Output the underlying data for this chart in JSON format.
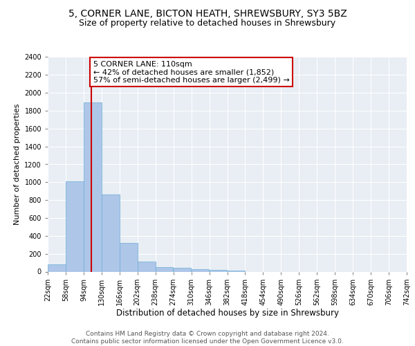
{
  "title1": "5, CORNER LANE, BICTON HEATH, SHREWSBURY, SY3 5BZ",
  "title2": "Size of property relative to detached houses in Shrewsbury",
  "xlabel": "Distribution of detached houses by size in Shrewsbury",
  "ylabel": "Number of detached properties",
  "bin_edges": [
    22,
    58,
    94,
    130,
    166,
    202,
    238,
    274,
    310,
    346,
    382,
    418,
    454,
    490,
    526,
    562,
    598,
    634,
    670,
    706,
    742
  ],
  "bar_heights": [
    85,
    1010,
    1890,
    860,
    320,
    115,
    50,
    40,
    30,
    18,
    10,
    0,
    0,
    0,
    0,
    0,
    0,
    0,
    0,
    0
  ],
  "bar_color": "#aec6e8",
  "bar_edge_color": "#6aaed6",
  "property_size": 110,
  "red_line_color": "#cc0000",
  "annotation_text": "5 CORNER LANE: 110sqm\n← 42% of detached houses are smaller (1,852)\n57% of semi-detached houses are larger (2,499) →",
  "annotation_box_color": "#ffffff",
  "annotation_box_edge_color": "#cc0000",
  "ylim": [
    0,
    2400
  ],
  "yticks": [
    0,
    200,
    400,
    600,
    800,
    1000,
    1200,
    1400,
    1600,
    1800,
    2000,
    2200,
    2400
  ],
  "background_color": "#e8eef4",
  "footer_text": "Contains HM Land Registry data © Crown copyright and database right 2024.\nContains public sector information licensed under the Open Government Licence v3.0.",
  "title1_fontsize": 10,
  "title2_fontsize": 9,
  "xlabel_fontsize": 8.5,
  "ylabel_fontsize": 8,
  "tick_fontsize": 7,
  "annotation_fontsize": 8,
  "footer_fontsize": 6.5
}
